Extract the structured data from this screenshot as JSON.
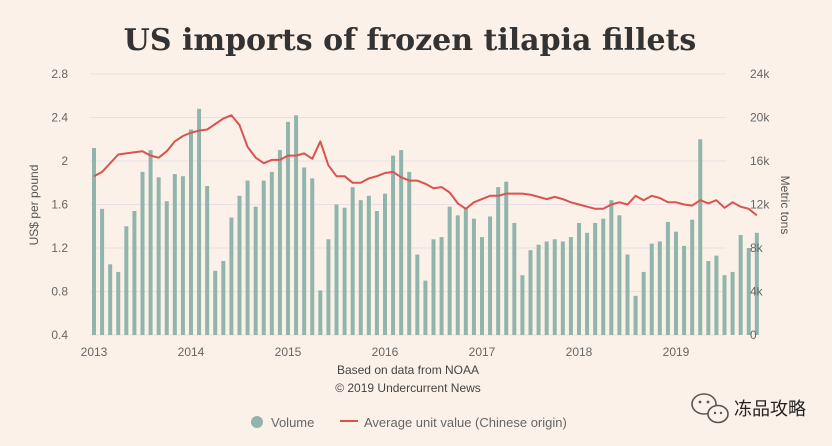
{
  "chart_data": {
    "type": "bar+line",
    "title": "US imports of frozen tilapia fillets",
    "ylabel_left": "US$ per pound",
    "ylabel_right": "Metric tons",
    "ylim_left": [
      0.4,
      2.8
    ],
    "ylim_right": [
      0,
      24000
    ],
    "yticks_left": [
      "0.4",
      "0.8",
      "1.2",
      "1.6",
      "2",
      "2.4",
      "2.8"
    ],
    "yticks_right": [
      "0",
      "4k",
      "8k",
      "12k",
      "16k",
      "20k",
      "24k"
    ],
    "x_ticks": [
      "2013",
      "2014",
      "2015",
      "2016",
      "2017",
      "2018",
      "2019"
    ],
    "x_start": "2013-01",
    "gridlines": true,
    "legend_position": "bottom",
    "source_lines": [
      "Based on data from NOAA",
      "© 2019 Undercurrent News"
    ],
    "series": [
      {
        "name": "Volume",
        "kind": "bar",
        "axis": "right",
        "color": "#8fb5ad",
        "values": [
          17200,
          11600,
          6500,
          5800,
          10000,
          11400,
          15000,
          17000,
          14500,
          12300,
          14800,
          14600,
          18900,
          20800,
          13700,
          5900,
          6800,
          10800,
          12800,
          14200,
          11800,
          14200,
          15000,
          17000,
          19600,
          20200,
          15400,
          14400,
          4100,
          8800,
          12000,
          11700,
          13600,
          12400,
          12800,
          11400,
          13000,
          16500,
          17000,
          15000,
          7400,
          5000,
          8800,
          9000,
          11800,
          11000,
          11700,
          10700,
          9000,
          10900,
          13600,
          14100,
          10300,
          5500,
          7800,
          8300,
          8600,
          8800,
          8600,
          9000,
          10300,
          9400,
          10300,
          10700,
          12400,
          11000,
          7400,
          3600,
          5800,
          8400,
          8600,
          10400,
          9500,
          8200,
          10600,
          18000,
          6800,
          7300,
          5500,
          5800,
          9200,
          8000,
          9400
        ]
      },
      {
        "name": "Average unit value (Chinese origin)",
        "kind": "line",
        "axis": "left",
        "color": "#d9534f",
        "values": [
          1.86,
          1.9,
          1.98,
          2.06,
          2.07,
          2.08,
          2.09,
          2.05,
          2.03,
          2.09,
          2.18,
          2.23,
          2.26,
          2.28,
          2.29,
          2.34,
          2.39,
          2.42,
          2.33,
          2.13,
          2.03,
          1.98,
          2.01,
          2.01,
          2.05,
          2.05,
          2.07,
          2.02,
          2.18,
          1.96,
          1.86,
          1.86,
          1.8,
          1.8,
          1.84,
          1.86,
          1.89,
          1.9,
          1.85,
          1.82,
          1.82,
          1.79,
          1.75,
          1.76,
          1.71,
          1.61,
          1.56,
          1.62,
          1.65,
          1.68,
          1.68,
          1.7,
          1.7,
          1.7,
          1.69,
          1.67,
          1.65,
          1.67,
          1.65,
          1.62,
          1.6,
          1.58,
          1.56,
          1.56,
          1.6,
          1.62,
          1.6,
          1.68,
          1.64,
          1.68,
          1.66,
          1.62,
          1.62,
          1.6,
          1.59,
          1.64,
          1.61,
          1.64,
          1.57,
          1.62,
          1.58,
          1.56,
          1.5
        ]
      }
    ]
  },
  "watermark": {
    "text": "冻品攻略",
    "icon": "wechat-icon"
  }
}
